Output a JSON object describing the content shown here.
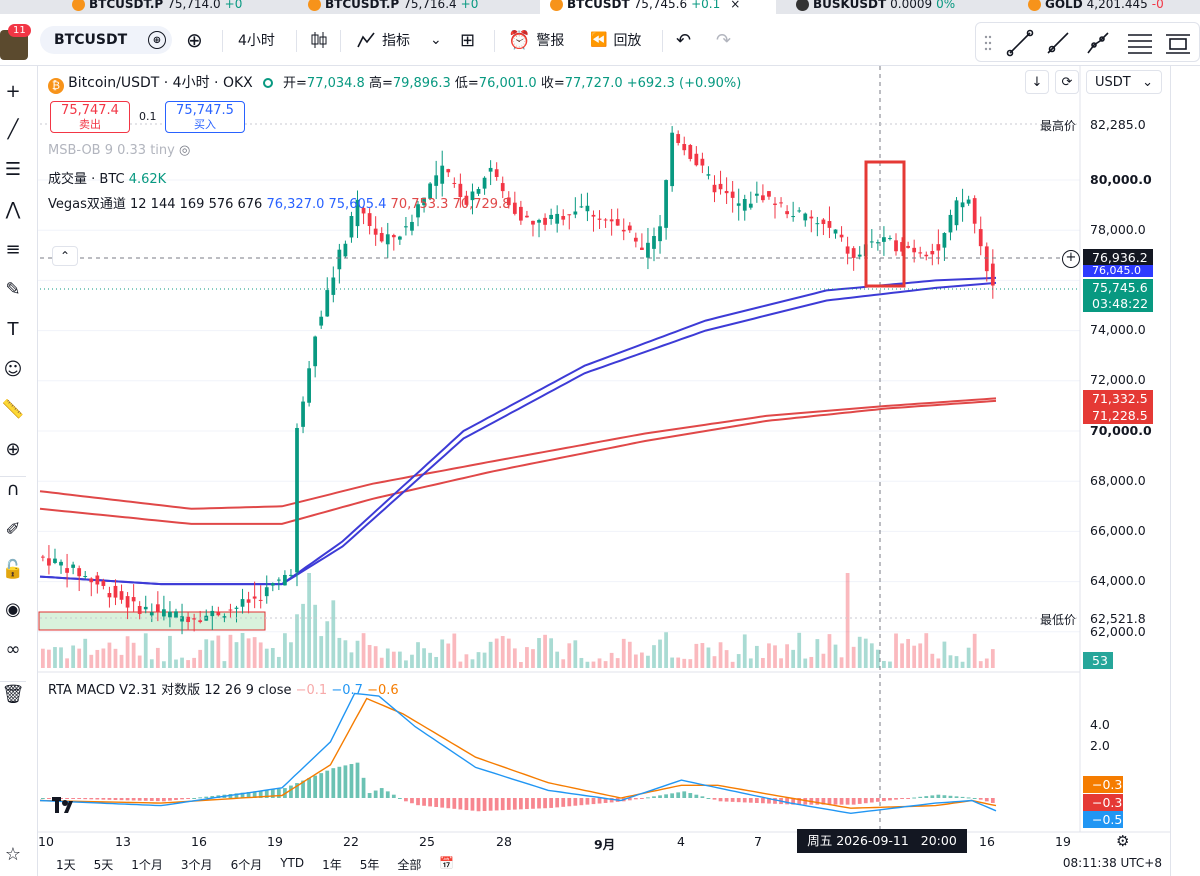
{
  "tabs": [
    {
      "symbol": "BTCUSDT.P",
      "price": "75,714.0",
      "change": "+0",
      "active": false
    },
    {
      "symbol": "BTCUSDT.P",
      "price": "75,716.4",
      "change": "+0",
      "active": false
    },
    {
      "symbol": "BTCUSDT",
      "price": "75,745.6",
      "change": "+0.1",
      "active": true
    },
    {
      "symbol": "BUSKUSDT",
      "price": "0.0009",
      "change": "0%",
      "active": false
    },
    {
      "symbol": "GOLD",
      "price": "4,201.445",
      "change": "-0",
      "active": false
    }
  ],
  "toolbar": {
    "notification_count": "11",
    "symbol": "BTCUSDT",
    "interval": "4小时",
    "indicators_label": "指标",
    "alert_label": "警报",
    "replay_label": "回放"
  },
  "legend": {
    "title": "Bitcoin/USDT · 4小时 · OKX",
    "open_label": "开=",
    "open": "77,034.8",
    "high_label": "高=",
    "high": "79,896.3",
    "low_label": "低=",
    "low": "76,001.0",
    "close_label": "收=",
    "close": "77,727.0",
    "change": "+692.3 (+0.90%)"
  },
  "order": {
    "sell_price": "75,747.4",
    "sell_label": "卖出",
    "spread": "0.1",
    "buy_price": "75,747.5",
    "buy_label": "买入"
  },
  "indicators": {
    "msb": "MSB-OB 9 0.33 tiny",
    "volume_label": "成交量 · BTC",
    "volume_value": "4.62K",
    "vegas_label": "Vegas双通道 12 144 169 576 676",
    "vegas_values": [
      "76,327.0",
      "75,605.4",
      "70,753.3",
      "70,729.8"
    ],
    "macd_label": "RTA MACD V2.31 对数版 12 26 9 close",
    "macd_values": [
      "−0.1",
      "−0.7",
      "−0.6"
    ]
  },
  "price_axis": {
    "currency": "USDT",
    "ticks": [
      "80,000.0",
      "78,000.0",
      "74,000.0",
      "72,000.0",
      "70,000.0",
      "68,000.0",
      "66,000.0",
      "64,000.0",
      "62,000.0"
    ],
    "high_label": "最高价",
    "high_value": "82,285.0",
    "low_label": "最低价",
    "low_value": "62,521.8",
    "crosshair_price": "76,936.2",
    "vegas_tag_blue": "76,045.0",
    "last_price": "75,745.6",
    "countdown": "03:48:22",
    "red_tag_1": "71,332.5",
    "red_tag_2": "71,228.5",
    "volume_tag": "53"
  },
  "macd_axis": {
    "ticks": [
      "4.0",
      "2.0"
    ],
    "tags": [
      "−0.3",
      "−0.3",
      "−0.5"
    ]
  },
  "time_axis": {
    "ticks": [
      "10",
      "13",
      "16",
      "19",
      "22",
      "25",
      "28",
      "9月",
      "4",
      "7",
      "16",
      "19"
    ],
    "crosshair_label": "周五 2026-09-11   20:00"
  },
  "bottom": {
    "ranges": [
      "1天",
      "5天",
      "1个月",
      "3个月",
      "6个月",
      "YTD",
      "1年",
      "5年",
      "全部"
    ],
    "clock": "08:11:38 UTC+8"
  },
  "colors": {
    "up": "#089981",
    "down": "#f23645",
    "vegas_blue": "#2962ff",
    "vegas_red": "#e04848",
    "macd_fast": "#2196f3",
    "macd_slow": "#f57c00"
  },
  "chart_data": {
    "type": "candlestick",
    "title": "Bitcoin/USDT · 4小时 · OKX",
    "price_range": [
      61000,
      83500
    ],
    "path": [
      [
        0,
        65000
      ],
      [
        4,
        64700
      ],
      [
        8,
        64200
      ],
      [
        12,
        63600
      ],
      [
        16,
        63000
      ],
      [
        20,
        62800
      ],
      [
        24,
        62600
      ],
      [
        28,
        62650
      ],
      [
        32,
        62900
      ],
      [
        36,
        63300
      ],
      [
        40,
        64000
      ],
      [
        42,
        64500
      ],
      [
        43,
        70000
      ],
      [
        46,
        74000
      ],
      [
        50,
        77000
      ],
      [
        53,
        79000
      ],
      [
        57,
        77500
      ],
      [
        61,
        78000
      ],
      [
        64,
        79500
      ],
      [
        67,
        80400
      ],
      [
        71,
        79200
      ],
      [
        75,
        80500
      ],
      [
        78,
        79000
      ],
      [
        82,
        78200
      ],
      [
        86,
        78500
      ],
      [
        90,
        79000
      ],
      [
        94,
        78400
      ],
      [
        98,
        77800
      ],
      [
        100,
        77000
      ],
      [
        103,
        78000
      ],
      [
        105,
        81900
      ],
      [
        108,
        81000
      ],
      [
        112,
        79700
      ],
      [
        116,
        79000
      ],
      [
        120,
        79400
      ],
      [
        124,
        78800
      ],
      [
        128,
        78400
      ],
      [
        132,
        77900
      ],
      [
        135,
        76800
      ],
      [
        138,
        77600
      ],
      [
        142,
        77400
      ],
      [
        146,
        77200
      ],
      [
        149,
        77200
      ],
      [
        152,
        79000
      ],
      [
        154,
        79200
      ],
      [
        156,
        77300
      ],
      [
        158,
        75800
      ]
    ],
    "vegas": {
      "blue_1_points": [
        [
          0,
          64200
        ],
        [
          20,
          63900
        ],
        [
          40,
          63900
        ],
        [
          50,
          65600
        ],
        [
          70,
          70000
        ],
        [
          90,
          72600
        ],
        [
          110,
          74400
        ],
        [
          130,
          75600
        ],
        [
          148,
          76000
        ],
        [
          158,
          76100
        ]
      ],
      "blue_2_points": [
        [
          0,
          64200
        ],
        [
          20,
          63900
        ],
        [
          40,
          63900
        ],
        [
          50,
          65400
        ],
        [
          70,
          69700
        ],
        [
          90,
          72300
        ],
        [
          110,
          74000
        ],
        [
          130,
          75200
        ],
        [
          148,
          75700
        ],
        [
          158,
          75900
        ]
      ],
      "red_1_points": [
        [
          0,
          67600
        ],
        [
          25,
          66900
        ],
        [
          40,
          67000
        ],
        [
          55,
          67900
        ],
        [
          75,
          68800
        ],
        [
          100,
          69900
        ],
        [
          120,
          70600
        ],
        [
          140,
          71000
        ],
        [
          158,
          71300
        ]
      ],
      "red_2_points": [
        [
          0,
          66900
        ],
        [
          25,
          66300
        ],
        [
          40,
          66300
        ],
        [
          55,
          67300
        ],
        [
          75,
          68400
        ],
        [
          100,
          69600
        ],
        [
          120,
          70400
        ],
        [
          140,
          70900
        ],
        [
          158,
          71200
        ]
      ]
    },
    "macd": {
      "fast": [
        [
          0,
          -0.1
        ],
        [
          20,
          -0.3
        ],
        [
          40,
          0.4
        ],
        [
          48,
          2.2
        ],
        [
          52,
          4.1
        ],
        [
          56,
          4.0
        ],
        [
          62,
          2.8
        ],
        [
          72,
          1.2
        ],
        [
          84,
          0.3
        ],
        [
          96,
          -0.1
        ],
        [
          106,
          0.7
        ],
        [
          110,
          0.5
        ],
        [
          124,
          -0.2
        ],
        [
          134,
          -0.6
        ],
        [
          148,
          -0.2
        ],
        [
          154,
          -0.1
        ],
        [
          158,
          -0.5
        ]
      ],
      "slow": [
        [
          0,
          -0.1
        ],
        [
          20,
          -0.2
        ],
        [
          40,
          0.1
        ],
        [
          48,
          1.3
        ],
        [
          54,
          3.9
        ],
        [
          60,
          3.3
        ],
        [
          72,
          1.6
        ],
        [
          84,
          0.6
        ],
        [
          96,
          0.0
        ],
        [
          106,
          0.5
        ],
        [
          112,
          0.5
        ],
        [
          124,
          0.0
        ],
        [
          134,
          -0.4
        ],
        [
          148,
          -0.3
        ],
        [
          154,
          -0.1
        ],
        [
          158,
          -0.3
        ]
      ],
      "range": [
        -0.8,
        4.5
      ]
    }
  }
}
